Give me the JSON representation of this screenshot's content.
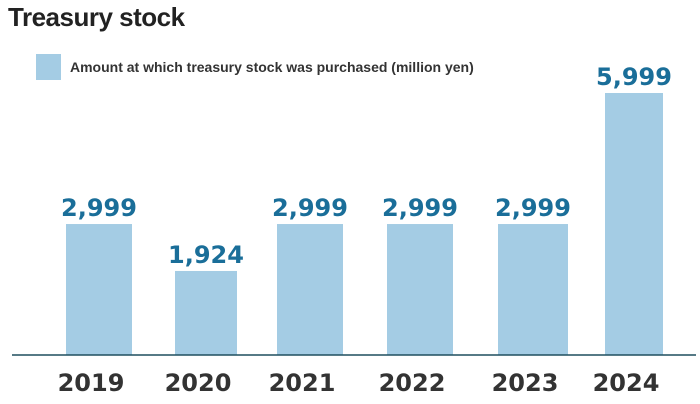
{
  "chart_data": {
    "type": "bar",
    "title": "Treasury stock",
    "categories": [
      "2019",
      "2020",
      "2021",
      "2022",
      "2023",
      "2024"
    ],
    "series": [
      {
        "name": "Amount at which treasury stock was purchased (million yen)",
        "values": [
          2999,
          1924,
          2999,
          2999,
          2999,
          5999
        ],
        "labels": [
          "2,999",
          "1,924",
          "2,999",
          "2,999",
          "2,999",
          "5,999"
        ]
      }
    ],
    "xlabel": "",
    "ylabel": "",
    "ylim": [
      0,
      5999
    ],
    "grid": false,
    "legend": "top-left",
    "colors": {
      "bar": "#a4cce4",
      "value_label": "#1a6e99",
      "axis": "#1f4e5f",
      "tick_label": "#333333"
    }
  }
}
